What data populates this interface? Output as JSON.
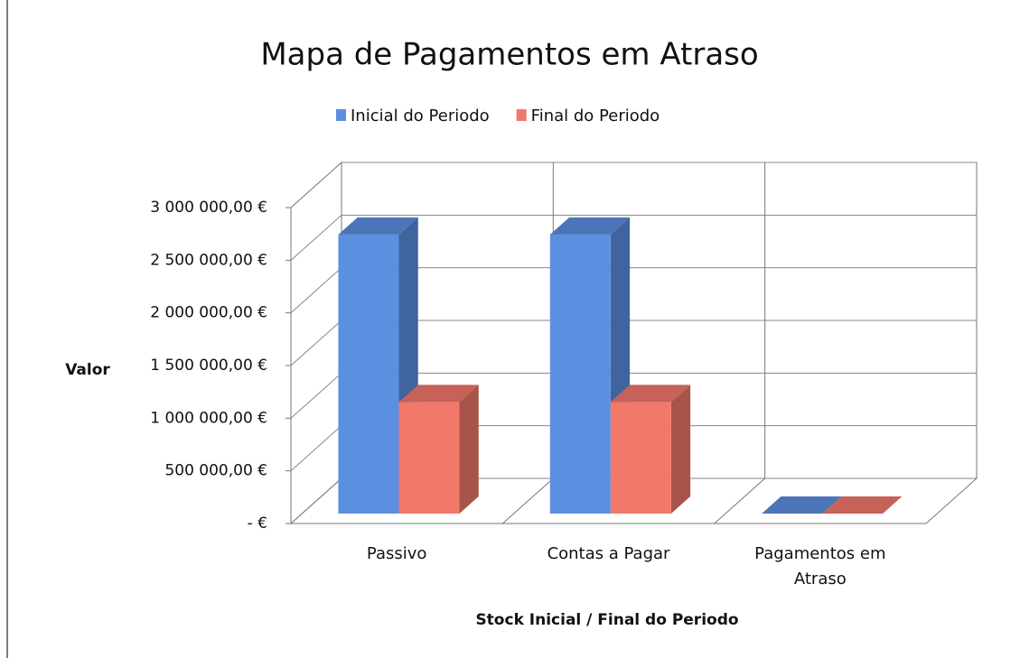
{
  "chart_data": {
    "type": "bar3d",
    "title": "Mapa de Pagamentos em Atraso",
    "categories": [
      "Passivo",
      "Contas a Pagar",
      "Pagamentos em Atraso"
    ],
    "series": [
      {
        "name": "Inicial do Periodo",
        "color": "#5b8fe0",
        "values": [
          2650000,
          2650000,
          0
        ]
      },
      {
        "name": "Final do Periodo",
        "color": "#f2786a",
        "values": [
          1060000,
          1060000,
          0
        ]
      }
    ],
    "y_label": "Valor",
    "x_label": "Stock Inicial / Final do Periodo",
    "ylim": [
      0,
      3000000
    ],
    "yticks": [
      {
        "value": 0,
        "label": "-  €"
      },
      {
        "value": 500000,
        "label": "500 000,00 €"
      },
      {
        "value": 1000000,
        "label": "1 000 000,00 €"
      },
      {
        "value": 1500000,
        "label": "1 500 000,00 €"
      },
      {
        "value": 2000000,
        "label": "2 000 000,00 €"
      },
      {
        "value": 2500000,
        "label": "2 500 000,00 €"
      },
      {
        "value": 3000000,
        "label": "3 000 000,00 €"
      }
    ],
    "grid": true,
    "legend": "top"
  }
}
